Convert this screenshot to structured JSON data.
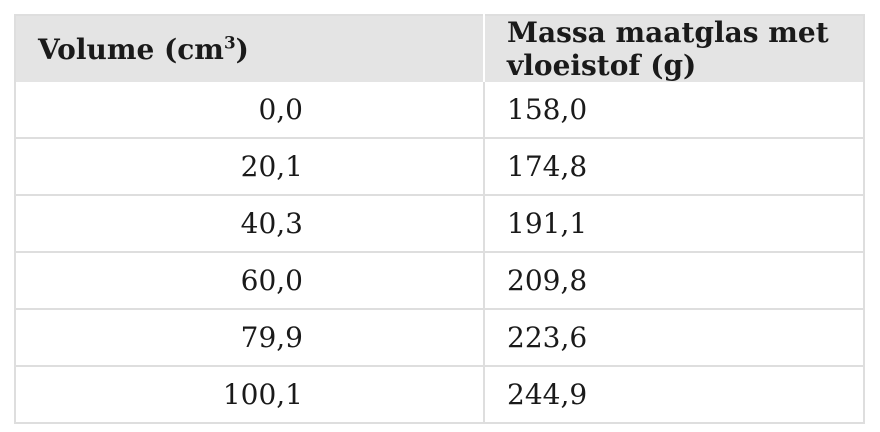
{
  "table": {
    "headers": {
      "volume": "Volume (cm",
      "volume_exp": "3",
      "volume_close": ")",
      "mass": "Massa maatglas met vloeistof (g)"
    },
    "rows": [
      {
        "volume": "0,0",
        "mass": "158,0"
      },
      {
        "volume": "20,1",
        "mass": "174,8"
      },
      {
        "volume": "40,3",
        "mass": "191,1"
      },
      {
        "volume": "60,0",
        "mass": "209,8"
      },
      {
        "volume": "79,9",
        "mass": "223,6"
      },
      {
        "volume": "100,1",
        "mass": "244,9"
      }
    ]
  }
}
